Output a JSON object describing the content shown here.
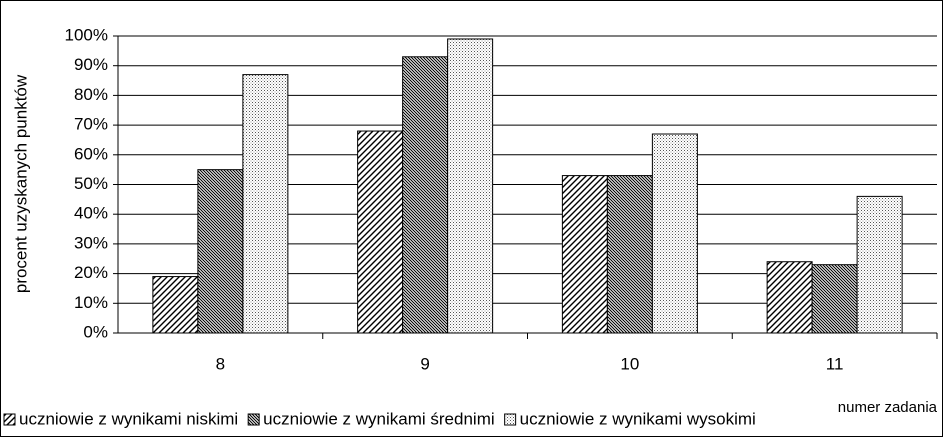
{
  "chart_data": {
    "type": "bar",
    "y_label": "procent uzyskanych punktów",
    "x_label": "numer zadania",
    "categories": [
      "8",
      "9",
      "10",
      "11"
    ],
    "series": [
      {
        "name": "uczniowie z wynikami niskimi",
        "color": "#000000",
        "pattern": "hatch",
        "values": [
          19,
          68,
          53,
          24
        ]
      },
      {
        "name": "uczniowie z wynikami średnimi",
        "color": "#000000",
        "pattern": "dense",
        "values": [
          55,
          93,
          53,
          23
        ]
      },
      {
        "name": "uczniowie z wynikami wysokimi",
        "color": "#000000",
        "pattern": "dots",
        "values": [
          87,
          99,
          67,
          46
        ]
      }
    ],
    "ylim": [
      0,
      100
    ],
    "yticks": [
      {
        "value": 0,
        "label": "0%"
      },
      {
        "value": 10,
        "label": "10%"
      },
      {
        "value": 20,
        "label": "20%"
      },
      {
        "value": 30,
        "label": "30%"
      },
      {
        "value": 40,
        "label": "40%"
      },
      {
        "value": 50,
        "label": "50%"
      },
      {
        "value": 60,
        "label": "60%"
      },
      {
        "value": 70,
        "label": "70%"
      },
      {
        "value": 80,
        "label": "80%"
      },
      {
        "value": 90,
        "label": "90%"
      },
      {
        "value": 100,
        "label": "100%"
      }
    ],
    "grid": true,
    "legend": "bottom"
  }
}
